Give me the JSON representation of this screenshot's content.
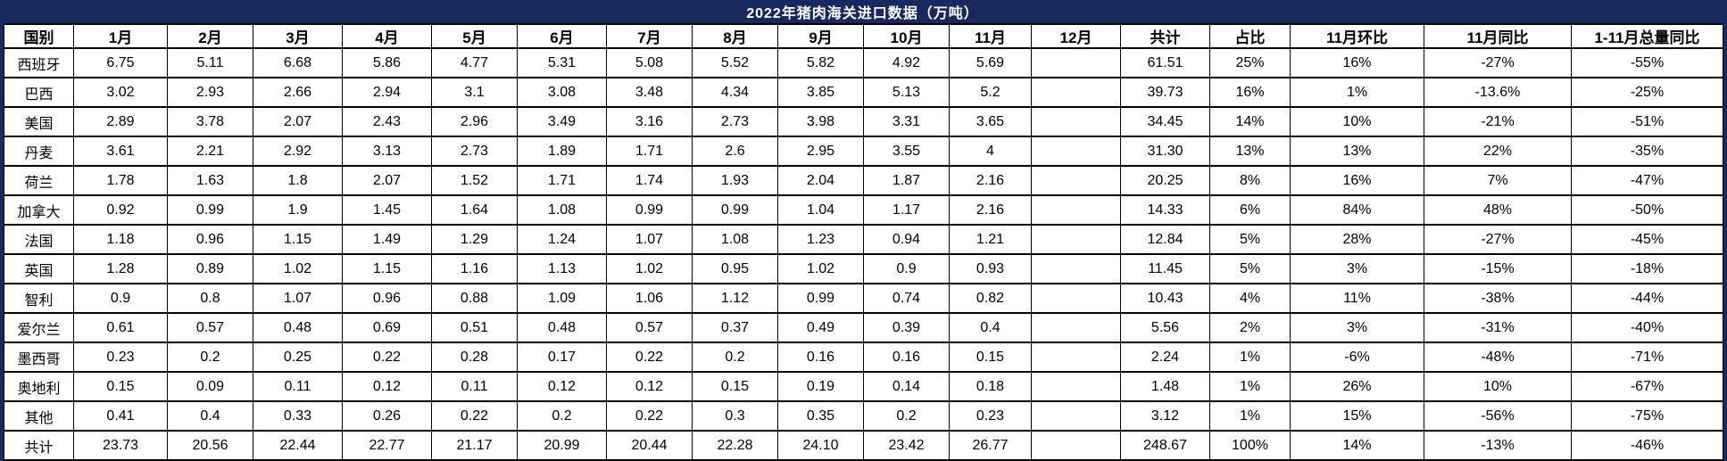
{
  "title": "2022年猪肉海关进口数据（万吨）",
  "colors": {
    "title_bg": "#18295e",
    "title_text": "#ffffff",
    "grid_border": "#000000",
    "cell_bg": "#ffffff",
    "cell_text": "#000000"
  },
  "chart_data": {
    "type": "table",
    "title": "2022年猪肉海关进口数据（万吨）",
    "unit": "万吨",
    "columns": [
      "国别",
      "1月",
      "2月",
      "3月",
      "4月",
      "5月",
      "6月",
      "7月",
      "8月",
      "9月",
      "10月",
      "11月",
      "12月",
      "共计",
      "占比",
      "11月环比",
      "11月同比",
      "1-11月总量同比"
    ],
    "rows": [
      [
        "西班牙",
        "6.75",
        "5.11",
        "6.68",
        "5.86",
        "4.77",
        "5.31",
        "5.08",
        "5.52",
        "5.82",
        "4.92",
        "5.69",
        "",
        "61.51",
        "25%",
        "16%",
        "-27%",
        "-55%"
      ],
      [
        "巴西",
        "3.02",
        "2.93",
        "2.66",
        "2.94",
        "3.1",
        "3.08",
        "3.48",
        "4.34",
        "3.85",
        "5.13",
        "5.2",
        "",
        "39.73",
        "16%",
        "1%",
        "-13.6%",
        "-25%"
      ],
      [
        "美国",
        "2.89",
        "3.78",
        "2.07",
        "2.43",
        "2.96",
        "3.49",
        "3.16",
        "2.73",
        "3.98",
        "3.31",
        "3.65",
        "",
        "34.45",
        "14%",
        "10%",
        "-21%",
        "-51%"
      ],
      [
        "丹麦",
        "3.61",
        "2.21",
        "2.92",
        "3.13",
        "2.73",
        "1.89",
        "1.71",
        "2.6",
        "2.95",
        "3.55",
        "4",
        "",
        "31.30",
        "13%",
        "13%",
        "22%",
        "-35%"
      ],
      [
        "荷兰",
        "1.78",
        "1.63",
        "1.8",
        "2.07",
        "1.52",
        "1.71",
        "1.74",
        "1.93",
        "2.04",
        "1.87",
        "2.16",
        "",
        "20.25",
        "8%",
        "16%",
        "7%",
        "-47%"
      ],
      [
        "加拿大",
        "0.92",
        "0.99",
        "1.9",
        "1.45",
        "1.64",
        "1.08",
        "0.99",
        "0.99",
        "1.04",
        "1.17",
        "2.16",
        "",
        "14.33",
        "6%",
        "84%",
        "48%",
        "-50%"
      ],
      [
        "法国",
        "1.18",
        "0.96",
        "1.15",
        "1.49",
        "1.29",
        "1.24",
        "1.07",
        "1.08",
        "1.23",
        "0.94",
        "1.21",
        "",
        "12.84",
        "5%",
        "28%",
        "-27%",
        "-45%"
      ],
      [
        "英国",
        "1.28",
        "0.89",
        "1.02",
        "1.15",
        "1.16",
        "1.13",
        "1.02",
        "0.95",
        "1.02",
        "0.9",
        "0.93",
        "",
        "11.45",
        "5%",
        "3%",
        "-15%",
        "-18%"
      ],
      [
        "智利",
        "0.9",
        "0.8",
        "1.07",
        "0.96",
        "0.88",
        "1.09",
        "1.06",
        "1.12",
        "0.99",
        "0.74",
        "0.82",
        "",
        "10.43",
        "4%",
        "11%",
        "-38%",
        "-44%"
      ],
      [
        "爱尔兰",
        "0.61",
        "0.57",
        "0.48",
        "0.69",
        "0.51",
        "0.48",
        "0.57",
        "0.37",
        "0.49",
        "0.39",
        "0.4",
        "",
        "5.56",
        "2%",
        "3%",
        "-31%",
        "-40%"
      ],
      [
        "墨西哥",
        "0.23",
        "0.2",
        "0.25",
        "0.22",
        "0.28",
        "0.17",
        "0.22",
        "0.2",
        "0.16",
        "0.16",
        "0.15",
        "",
        "2.24",
        "1%",
        "-6%",
        "-48%",
        "-71%"
      ],
      [
        "奥地利",
        "0.15",
        "0.09",
        "0.11",
        "0.12",
        "0.11",
        "0.12",
        "0.12",
        "0.15",
        "0.19",
        "0.14",
        "0.18",
        "",
        "1.48",
        "1%",
        "26%",
        "10%",
        "-67%"
      ],
      [
        "其他",
        "0.41",
        "0.4",
        "0.33",
        "0.26",
        "0.22",
        "0.2",
        "0.22",
        "0.3",
        "0.35",
        "0.2",
        "0.23",
        "",
        "3.12",
        "1%",
        "15%",
        "-56%",
        "-75%"
      ],
      [
        "共计",
        "23.73",
        "20.56",
        "22.44",
        "22.77",
        "21.17",
        "20.99",
        "20.44",
        "22.28",
        "24.10",
        "23.42",
        "26.77",
        "",
        "248.67",
        "100%",
        "14%",
        "-13%",
        "-46%"
      ]
    ]
  }
}
